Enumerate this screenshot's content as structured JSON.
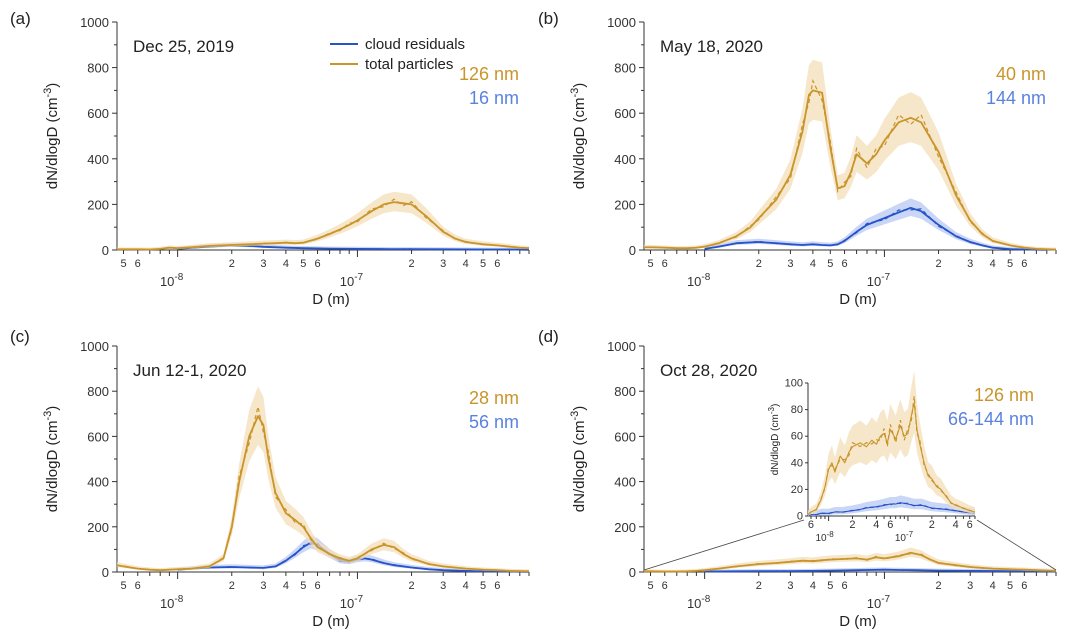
{
  "colors": {
    "total": "#C9952B",
    "total_band": "#F3DDB8",
    "resid": "#2653C9",
    "resid_band": "#B8C8F2",
    "resid_label": "#5A82E0"
  },
  "legend": {
    "resid": "cloud residuals",
    "total": "total particles"
  },
  "chart_data": [
    {
      "panel": "(a)",
      "title": "Dec 25, 2019",
      "type": "line",
      "xlabel": "D (m)",
      "ylabel": "dN/dlogD (cm-3)",
      "xscale": "log",
      "xlim": [
        4.6e-09,
        9e-07
      ],
      "ylim": [
        0,
        1000
      ],
      "yticks": [
        0,
        200,
        400,
        600,
        800,
        1000
      ],
      "ann_total": "126 nm",
      "ann_resid": "16 nm",
      "series": [
        {
          "key": "total",
          "x": [
            4.6e-09,
            5e-09,
            6e-09,
            7e-09,
            8e-09,
            9e-09,
            1e-08,
            1.2e-08,
            1.5e-08,
            2e-08,
            2.5e-08,
            3e-08,
            3.5e-08,
            4e-08,
            4.5e-08,
            5e-08,
            6e-08,
            7e-08,
            8e-08,
            9e-08,
            1e-07,
            1.2e-07,
            1.4e-07,
            1.6e-07,
            1.8e-07,
            2e-07,
            2.4e-07,
            3e-07,
            3.5e-07,
            4e-07,
            5e-07,
            6e-07,
            7e-07,
            8e-07,
            9e-07
          ],
          "y": [
            3,
            3,
            3,
            2,
            5,
            10,
            8,
            12,
            18,
            22,
            25,
            28,
            30,
            32,
            30,
            32,
            50,
            70,
            90,
            110,
            130,
            170,
            200,
            210,
            205,
            200,
            150,
            80,
            50,
            35,
            25,
            20,
            15,
            10,
            8
          ]
        },
        {
          "key": "resid",
          "x": [
            1e-08,
            1.2e-08,
            1.5e-08,
            2e-08,
            2.5e-08,
            3e-08,
            4e-08,
            5e-08,
            7e-08,
            1e-07,
            1.5e-07,
            2e-07,
            3e-07,
            5e-07,
            7e-07,
            9e-07
          ],
          "y": [
            5,
            10,
            15,
            20,
            18,
            14,
            10,
            8,
            6,
            5,
            4,
            4,
            3,
            2,
            2,
            1
          ]
        }
      ]
    },
    {
      "panel": "(b)",
      "title": "May 18, 2020",
      "type": "line",
      "xlabel": "D (m)",
      "ylabel": "dN/dlogD (cm-3)",
      "xscale": "log",
      "xlim": [
        4.6e-09,
        9e-07
      ],
      "ylim": [
        0,
        1000
      ],
      "yticks": [
        0,
        200,
        400,
        600,
        800,
        1000
      ],
      "ann_total": "40 nm",
      "ann_resid": "144 nm",
      "series": [
        {
          "key": "total",
          "x": [
            4.6e-09,
            5e-09,
            6e-09,
            7e-09,
            8e-09,
            9e-09,
            1e-08,
            1.2e-08,
            1.5e-08,
            1.8e-08,
            2e-08,
            2.5e-08,
            3e-08,
            3.5e-08,
            3.8e-08,
            4e-08,
            4.5e-08,
            5e-08,
            5.5e-08,
            6e-08,
            6.5e-08,
            7e-08,
            8e-08,
            9e-08,
            1e-07,
            1.2e-07,
            1.4e-07,
            1.6e-07,
            2e-07,
            2.5e-07,
            3e-07,
            3.5e-07,
            4e-07,
            5e-07,
            6e-07,
            7e-07,
            8e-07,
            9e-07
          ],
          "y": [
            12,
            12,
            10,
            8,
            8,
            10,
            15,
            30,
            60,
            100,
            140,
            220,
            330,
            520,
            680,
            700,
            690,
            450,
            270,
            280,
            340,
            420,
            380,
            420,
            480,
            560,
            580,
            560,
            430,
            240,
            130,
            70,
            40,
            20,
            10,
            5,
            3,
            2
          ]
        },
        {
          "key": "resid",
          "x": [
            1e-08,
            1.2e-08,
            1.5e-08,
            2e-08,
            2.5e-08,
            3e-08,
            3.5e-08,
            4e-08,
            4.5e-08,
            5e-08,
            5.5e-08,
            6e-08,
            7e-08,
            8e-08,
            1e-07,
            1.2e-07,
            1.4e-07,
            1.6e-07,
            2e-07,
            2.5e-07,
            3e-07,
            3.5e-07,
            4e-07,
            5e-07,
            6e-07,
            8e-07
          ],
          "y": [
            5,
            15,
            30,
            35,
            30,
            25,
            22,
            25,
            22,
            20,
            25,
            40,
            80,
            110,
            140,
            165,
            185,
            170,
            110,
            60,
            35,
            20,
            10,
            4,
            2,
            1
          ]
        }
      ]
    },
    {
      "panel": "(c)",
      "title": "Jun 12-1, 2020",
      "type": "line",
      "xlabel": "D (m)",
      "ylabel": "dN/dlogD (cm-3)",
      "xscale": "log",
      "xlim": [
        4.6e-09,
        9e-07
      ],
      "ylim": [
        0,
        1000
      ],
      "yticks": [
        0,
        200,
        400,
        600,
        800,
        1000
      ],
      "ann_total": "28 nm",
      "ann_resid": "56 nm",
      "series": [
        {
          "key": "total",
          "x": [
            4.6e-09,
            5e-09,
            6e-09,
            7e-09,
            8e-09,
            9e-09,
            1e-08,
            1.2e-08,
            1.5e-08,
            1.8e-08,
            2e-08,
            2.2e-08,
            2.5e-08,
            2.8e-08,
            3e-08,
            3.2e-08,
            3.5e-08,
            4e-08,
            4.5e-08,
            5e-08,
            5.5e-08,
            6e-08,
            7e-08,
            8e-08,
            9e-08,
            1e-07,
            1.2e-07,
            1.4e-07,
            1.6e-07,
            1.8e-07,
            2e-07,
            2.5e-07,
            3e-07,
            4e-07,
            5e-07,
            6e-07,
            7e-07,
            9e-07
          ],
          "y": [
            30,
            25,
            15,
            10,
            8,
            10,
            12,
            15,
            25,
            60,
            200,
            400,
            600,
            690,
            650,
            500,
            350,
            260,
            230,
            200,
            150,
            110,
            80,
            60,
            50,
            60,
            100,
            120,
            110,
            80,
            60,
            35,
            25,
            15,
            10,
            8,
            5,
            3
          ]
        },
        {
          "key": "resid",
          "x": [
            1e-08,
            1.2e-08,
            1.5e-08,
            2e-08,
            2.5e-08,
            3e-08,
            3.5e-08,
            4e-08,
            4.5e-08,
            5e-08,
            5.5e-08,
            6e-08,
            7e-08,
            8e-08,
            9e-08,
            1e-07,
            1.1e-07,
            1.2e-07,
            1.4e-07,
            1.6e-07,
            2e-07,
            2.5e-07,
            3e-07,
            4e-07,
            5e-07,
            7e-07,
            9e-07
          ],
          "y": [
            10,
            15,
            20,
            22,
            20,
            18,
            25,
            50,
            80,
            110,
            130,
            120,
            80,
            50,
            45,
            55,
            60,
            55,
            40,
            30,
            20,
            12,
            8,
            5,
            3,
            2,
            1
          ]
        }
      ]
    },
    {
      "panel": "(d)",
      "title": "Oct 28, 2020",
      "type": "line",
      "xlabel": "D (m)",
      "ylabel": "dN/dlogD (cm-3)",
      "xscale": "log",
      "xlim": [
        4.6e-09,
        9e-07
      ],
      "ylim": [
        0,
        1000
      ],
      "yticks": [
        0,
        200,
        400,
        600,
        800,
        1000
      ],
      "ann_total": "126 nm",
      "ann_resid": "66-144 nm",
      "series": [
        {
          "key": "total",
          "x": [
            4.6e-09,
            5e-09,
            6e-09,
            7e-09,
            8e-09,
            9e-09,
            1e-08,
            1.2e-08,
            1.5e-08,
            2e-08,
            2.5e-08,
            3e-08,
            3.5e-08,
            4e-08,
            4.5e-08,
            5e-08,
            6e-08,
            7e-08,
            8e-08,
            9e-08,
            1e-07,
            1.2e-07,
            1.4e-07,
            1.6e-07,
            1.8e-07,
            2e-07,
            2.5e-07,
            3e-07,
            3.5e-07,
            4e-07,
            5e-07,
            6e-07,
            7e-07,
            9e-07
          ],
          "y": [
            3,
            3,
            2,
            2,
            3,
            5,
            8,
            15,
            25,
            35,
            40,
            45,
            50,
            48,
            52,
            55,
            58,
            60,
            55,
            65,
            60,
            70,
            85,
            75,
            55,
            40,
            30,
            22,
            18,
            15,
            12,
            10,
            8,
            5
          ]
        },
        {
          "key": "resid",
          "x": [
            1e-08,
            1.5e-08,
            2e-08,
            3e-08,
            4e-08,
            5e-08,
            6e-08,
            7e-08,
            8e-08,
            1e-07,
            1.2e-07,
            1.5e-07,
            2e-07,
            3e-07,
            5e-07,
            7e-07,
            9e-07
          ],
          "y": [
            2,
            3,
            4,
            4,
            5,
            6,
            7,
            8,
            9,
            10,
            9,
            8,
            6,
            5,
            4,
            3,
            2
          ]
        }
      ],
      "inset": {
        "ylabel": "dN/dlogD (cm-3)",
        "ylim": [
          0,
          100
        ],
        "yticks": [
          0,
          20,
          40,
          60,
          80,
          100
        ],
        "xlim": [
          5.5e-09,
          7e-07
        ],
        "series": [
          {
            "key": "total",
            "x": [
              5.5e-09,
              6e-09,
              7e-09,
              8e-09,
              9e-09,
              1e-08,
              1.1e-08,
              1.2e-08,
              1.4e-08,
              1.6e-08,
              1.8e-08,
              2e-08,
              2.5e-08,
              3e-08,
              3.5e-08,
              4e-08,
              4.5e-08,
              5e-08,
              5.5e-08,
              6e-08,
              7e-08,
              8e-08,
              9e-08,
              1e-07,
              1.1e-07,
              1.2e-07,
              1.3e-07,
              1.4e-07,
              1.6e-07,
              1.8e-07,
              2e-07,
              2.3e-07,
              2.6e-07,
              3e-07,
              3.5e-07,
              4e-07,
              5e-07,
              6e-07,
              7e-07
            ],
            "y": [
              1,
              3,
              5,
              12,
              22,
              35,
              40,
              33,
              45,
              40,
              48,
              52,
              55,
              52,
              57,
              54,
              60,
              62,
              55,
              65,
              58,
              68,
              60,
              62,
              75,
              85,
              65,
              55,
              40,
              30,
              28,
              22,
              20,
              15,
              10,
              8,
              6,
              4,
              3
            ]
          },
          {
            "key": "resid",
            "x": [
              5.5e-09,
              6e-09,
              7e-09,
              8e-09,
              1e-08,
              1.2e-08,
              1.5e-08,
              2e-08,
              2.5e-08,
              3e-08,
              4e-08,
              5e-08,
              6e-08,
              7e-08,
              8e-08,
              1e-07,
              1.2e-07,
              1.5e-07,
              2e-07,
              3e-07,
              4e-07,
              5e-07,
              7e-07
            ],
            "y": [
              0,
              1,
              1,
              2,
              2,
              3,
              3,
              4,
              5,
              6,
              7,
              8,
              9,
              9,
              10,
              9,
              8,
              8,
              6,
              5,
              4,
              3,
              2
            ]
          }
        ]
      }
    }
  ]
}
